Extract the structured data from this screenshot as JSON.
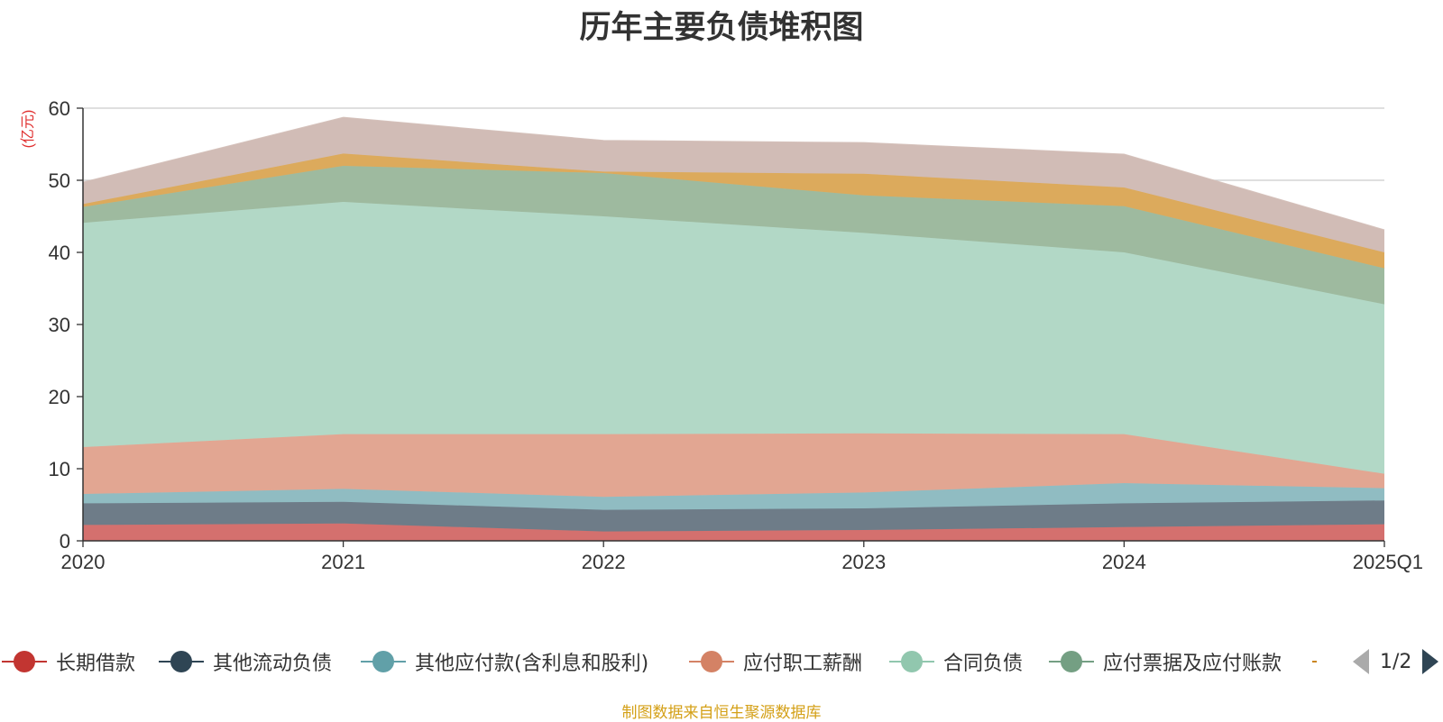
{
  "title": "历年主要负债堆积图",
  "source_note": "制图数据来自恒生聚源数据库",
  "legend_pager": {
    "text": "1/2"
  },
  "chart_data": {
    "type": "area",
    "stacked": true,
    "ylabel": "(亿元)",
    "ylim": [
      0,
      60
    ],
    "yticks": [
      0,
      10,
      20,
      30,
      40,
      50,
      60
    ],
    "grid": true,
    "legend_position": "bottom",
    "x": [
      "2020",
      "2021",
      "2022",
      "2023",
      "2024",
      "2025Q1"
    ],
    "series": [
      {
        "name": "长期借款",
        "color": "#c23531",
        "fill": "#d4706e",
        "values": [
          2.2,
          2.4,
          1.3,
          1.5,
          1.9,
          2.3
        ]
      },
      {
        "name": "其他流动负债",
        "color": "#2f4554",
        "fill": "#6e7c88",
        "values": [
          3.0,
          3.0,
          3.0,
          3.0,
          3.3,
          3.3
        ]
      },
      {
        "name": "其他应付款(含利息和股利)",
        "color": "#61a0a8",
        "fill": "#90bcc2",
        "values": [
          1.3,
          1.8,
          1.8,
          2.2,
          2.8,
          1.7
        ]
      },
      {
        "name": "应付职工薪酬",
        "color": "#d48265",
        "fill": "#e2a692",
        "values": [
          6.5,
          7.6,
          8.7,
          8.2,
          6.8,
          2.0
        ]
      },
      {
        "name": "合同负债",
        "color": "#91c7ae",
        "fill": "#b2d8c6",
        "values": [
          31.1,
          32.2,
          30.2,
          27.8,
          25.2,
          23.5
        ]
      },
      {
        "name": "应付票据及应付账款",
        "color": "#749f83",
        "fill": "#9eba9f",
        "values": [
          2.2,
          5.0,
          6.0,
          5.2,
          6.4,
          5.0
        ]
      },
      {
        "name": "",
        "color": "#ca8622",
        "fill": "#dcaa5c",
        "values": [
          0.4,
          1.7,
          0.2,
          3.0,
          2.6,
          2.2
        ]
      },
      {
        "name": "",
        "color": "#bda29a",
        "fill": "#d1bcb6",
        "values": [
          3.0,
          5.0,
          4.3,
          4.3,
          4.6,
          3.1
        ]
      }
    ]
  }
}
